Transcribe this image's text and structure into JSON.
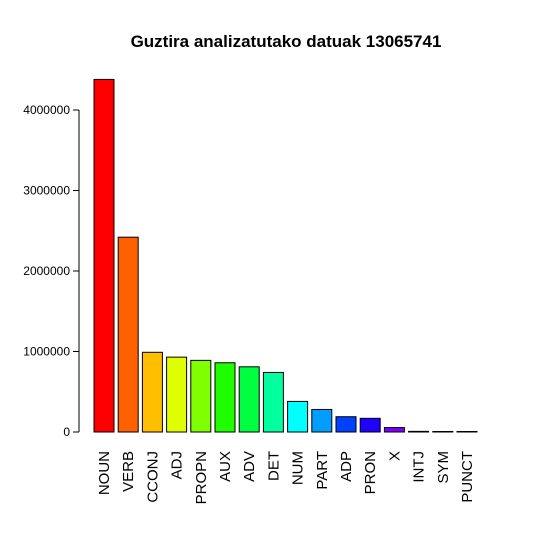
{
  "chart_data": {
    "type": "bar",
    "title": "Guztira analizatutako datuak 13065741",
    "xlabel": "",
    "ylabel": "",
    "ylim": [
      0,
      4400000
    ],
    "yticks": [
      0,
      1000000,
      2000000,
      3000000,
      4000000
    ],
    "ytick_labels": [
      "0",
      "1000000",
      "2000000",
      "3000000",
      "4000000"
    ],
    "grid": false,
    "categories": [
      "NOUN",
      "VERB",
      "CCONJ",
      "ADJ",
      "PROPN",
      "AUX",
      "ADV",
      "DET",
      "NUM",
      "PART",
      "ADP",
      "PRON",
      "X",
      "INTJ",
      "SYM",
      "PUNCT"
    ],
    "values": [
      4380000,
      2420000,
      990000,
      930000,
      890000,
      860000,
      810000,
      740000,
      380000,
      280000,
      190000,
      170000,
      55000,
      8000,
      4000,
      2000
    ],
    "colors": [
      "#FF0000",
      "#FF6000",
      "#FFBF00",
      "#DFFF00",
      "#80FF00",
      "#20FF00",
      "#00FF40",
      "#00FF9F",
      "#00FFFF",
      "#009FFF",
      "#0040FF",
      "#2000FF",
      "#8000FF",
      "#DF00FF",
      "#FF00BF",
      "#FF0060"
    ]
  }
}
